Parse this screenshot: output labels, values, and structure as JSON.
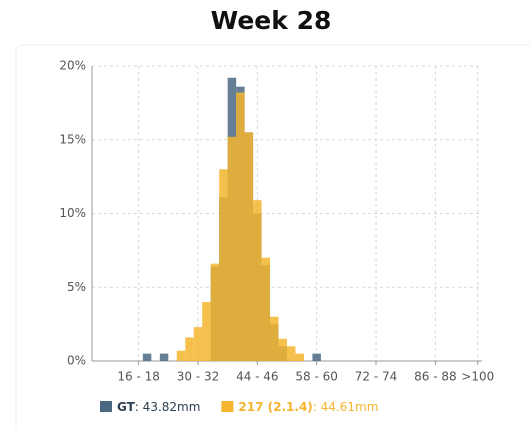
{
  "chart_data": {
    "type": "histogram",
    "title": "Week 28",
    "categories": [
      null,
      null,
      null,
      null,
      null,
      "16 - 18",
      null,
      null,
      null,
      null,
      null,
      null,
      "30 - 32",
      null,
      null,
      null,
      null,
      null,
      null,
      "44 - 46",
      null,
      null,
      null,
      null,
      null,
      null,
      "58 - 60",
      null,
      null,
      null,
      null,
      null,
      null,
      "72 - 74",
      null,
      null,
      null,
      null,
      null,
      null,
      "86 - 88",
      null,
      null,
      null,
      null,
      ">100"
    ],
    "series": [
      {
        "name": "GT",
        "color": "#4b6882",
        "legend_value": ": 43.82mm",
        "values": [
          0,
          0,
          0,
          0,
          0,
          0,
          0.5,
          0,
          0.5,
          0,
          0,
          0,
          0,
          0,
          6.4,
          11.1,
          19.2,
          18.6,
          15.5,
          10,
          6.5,
          2.5,
          1,
          0,
          0,
          0,
          0.5,
          0,
          0,
          0,
          0,
          0,
          0,
          0,
          0,
          0,
          0,
          0,
          0,
          0,
          0,
          0,
          0,
          0,
          0,
          0
        ]
      },
      {
        "name": "217 (2.1.4)",
        "color": "#f5b52e",
        "legend_value": ": 44.61mm",
        "values": [
          0,
          0,
          0,
          0,
          0,
          0,
          0,
          0,
          0,
          0,
          0.7,
          1.6,
          2.3,
          4,
          6.6,
          13,
          15.2,
          18.2,
          15.5,
          10.9,
          7,
          3,
          1.5,
          1,
          0.5,
          0,
          0,
          0,
          0,
          0,
          0,
          0,
          0,
          0,
          0,
          0,
          0,
          0,
          0,
          0,
          0,
          0,
          0,
          0,
          0,
          0
        ]
      }
    ],
    "ylim": [
      0,
      20
    ],
    "yticks": [
      {
        "value": 0,
        "label": "0%"
      },
      {
        "value": 5,
        "label": "5%"
      },
      {
        "value": 10,
        "label": "10%"
      },
      {
        "value": 15,
        "label": "15%"
      },
      {
        "value": 20,
        "label": "20%"
      }
    ],
    "grid": true
  }
}
